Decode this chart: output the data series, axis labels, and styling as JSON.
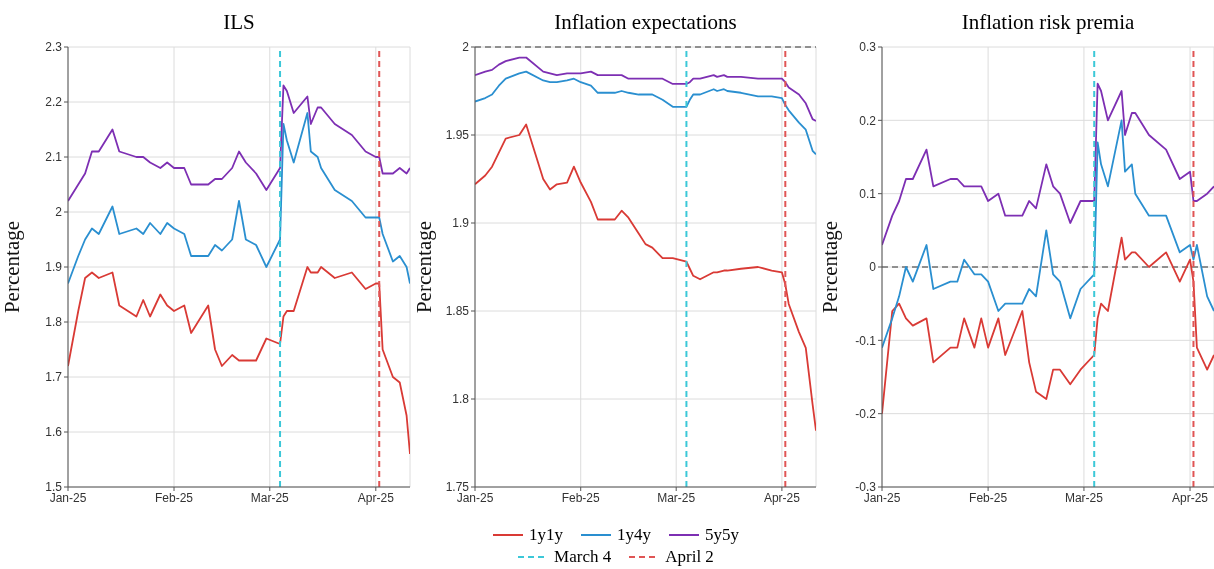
{
  "chart_data": [
    {
      "type": "line",
      "title": "ILS",
      "ylabel": "Percentage",
      "grid": true,
      "x": [
        "2025-01-01",
        "2025-01-04",
        "2025-01-06",
        "2025-01-08",
        "2025-01-10",
        "2025-01-14",
        "2025-01-16",
        "2025-01-21",
        "2025-01-23",
        "2025-01-25",
        "2025-01-28",
        "2025-01-30",
        "2025-02-01",
        "2025-02-04",
        "2025-02-06",
        "2025-02-11",
        "2025-02-13",
        "2025-02-15",
        "2025-02-18",
        "2025-02-20",
        "2025-02-22",
        "2025-02-25",
        "2025-02-28",
        "2025-03-04",
        "2025-03-05",
        "2025-03-06",
        "2025-03-08",
        "2025-03-12",
        "2025-03-13",
        "2025-03-15",
        "2025-03-16",
        "2025-03-20",
        "2025-03-25",
        "2025-03-29",
        "2025-04-01",
        "2025-04-02",
        "2025-04-03",
        "2025-04-06",
        "2025-04-08",
        "2025-04-10",
        "2025-04-11"
      ],
      "xlim": [
        "2025-01-01",
        "2025-04-11"
      ],
      "xticks": [
        {
          "value": "2025-01-01",
          "label": "Jan-25"
        },
        {
          "value": "2025-02-01",
          "label": "Feb-25"
        },
        {
          "value": "2025-03-01",
          "label": "Mar-25"
        },
        {
          "value": "2025-04-01",
          "label": "Apr-25"
        }
      ],
      "ylim": [
        1.5,
        2.3
      ],
      "yticks": [
        1.5,
        1.6,
        1.7,
        1.8,
        1.9,
        2,
        2.1,
        2.2,
        2.3
      ],
      "series": [
        {
          "color": "#d93a35",
          "values": [
            1.72,
            1.82,
            1.88,
            1.89,
            1.88,
            1.89,
            1.83,
            1.81,
            1.84,
            1.81,
            1.85,
            1.83,
            1.82,
            1.83,
            1.78,
            1.83,
            1.75,
            1.72,
            1.74,
            1.73,
            1.73,
            1.73,
            1.77,
            1.76,
            1.81,
            1.82,
            1.82,
            1.9,
            1.89,
            1.89,
            1.9,
            1.88,
            1.89,
            1.86,
            1.87,
            1.87,
            1.75,
            1.7,
            1.69,
            1.63,
            1.56
          ]
        },
        {
          "color": "#2a8fd0",
          "values": [
            1.87,
            1.92,
            1.95,
            1.97,
            1.96,
            2.01,
            1.96,
            1.97,
            1.96,
            1.98,
            1.96,
            1.98,
            1.97,
            1.96,
            1.92,
            1.92,
            1.94,
            1.93,
            1.95,
            2.02,
            1.95,
            1.94,
            1.9,
            1.95,
            2.16,
            2.13,
            2.09,
            2.18,
            2.11,
            2.1,
            2.08,
            2.04,
            2.02,
            1.99,
            1.99,
            1.99,
            1.96,
            1.91,
            1.92,
            1.9,
            1.87
          ]
        },
        {
          "color": "#7d2fb3",
          "values": [
            2.02,
            2.05,
            2.07,
            2.11,
            2.11,
            2.15,
            2.11,
            2.1,
            2.1,
            2.09,
            2.08,
            2.09,
            2.08,
            2.08,
            2.05,
            2.05,
            2.06,
            2.06,
            2.08,
            2.11,
            2.09,
            2.07,
            2.04,
            2.08,
            2.23,
            2.22,
            2.18,
            2.21,
            2.16,
            2.19,
            2.19,
            2.16,
            2.14,
            2.11,
            2.1,
            2.1,
            2.07,
            2.07,
            2.08,
            2.07,
            2.08
          ]
        }
      ],
      "ref_lines": [
        {
          "axis": "x",
          "value": "2025-03-04",
          "color": "#3cc8d8",
          "line_style": "dashed"
        },
        {
          "axis": "x",
          "value": "2025-04-02",
          "color": "#e05555",
          "line_style": "dashed"
        }
      ]
    },
    {
      "type": "line",
      "title": "Inflation expectations",
      "ylabel": "Percentage",
      "grid": true,
      "legend": "bottom",
      "x": [
        "2025-01-01",
        "2025-01-04",
        "2025-01-06",
        "2025-01-08",
        "2025-01-10",
        "2025-01-14",
        "2025-01-16",
        "2025-01-21",
        "2025-01-23",
        "2025-01-25",
        "2025-01-28",
        "2025-01-30",
        "2025-02-01",
        "2025-02-04",
        "2025-02-06",
        "2025-02-11",
        "2025-02-13",
        "2025-02-15",
        "2025-02-18",
        "2025-02-20",
        "2025-02-22",
        "2025-02-25",
        "2025-02-28",
        "2025-03-04",
        "2025-03-05",
        "2025-03-06",
        "2025-03-08",
        "2025-03-12",
        "2025-03-13",
        "2025-03-15",
        "2025-03-16",
        "2025-03-20",
        "2025-03-25",
        "2025-03-29",
        "2025-04-01",
        "2025-04-02",
        "2025-04-03",
        "2025-04-06",
        "2025-04-08",
        "2025-04-10",
        "2025-04-11"
      ],
      "xlim": [
        "2025-01-01",
        "2025-04-11"
      ],
      "xticks": [
        {
          "value": "2025-01-01",
          "label": "Jan-25"
        },
        {
          "value": "2025-02-01",
          "label": "Feb-25"
        },
        {
          "value": "2025-03-01",
          "label": "Mar-25"
        },
        {
          "value": "2025-04-01",
          "label": "Apr-25"
        }
      ],
      "ylim": [
        1.75,
        2
      ],
      "yticks": [
        1.75,
        1.8,
        1.85,
        1.9,
        1.95,
        2
      ],
      "series": [
        {
          "name": "1y1y",
          "color": "#d93a35",
          "values": [
            1.922,
            1.927,
            1.932,
            1.94,
            1.948,
            1.95,
            1.956,
            1.925,
            1.919,
            1.922,
            1.923,
            1.932,
            1.923,
            1.912,
            1.902,
            1.902,
            1.907,
            1.903,
            1.894,
            1.888,
            1.886,
            1.88,
            1.88,
            1.878,
            1.874,
            1.87,
            1.868,
            1.872,
            1.872,
            1.873,
            1.873,
            1.874,
            1.875,
            1.873,
            1.872,
            1.865,
            1.854,
            1.838,
            1.829,
            1.797,
            1.782
          ]
        },
        {
          "name": "1y4y",
          "color": "#2a8fd0",
          "values": [
            1.969,
            1.971,
            1.973,
            1.978,
            1.982,
            1.985,
            1.986,
            1.981,
            1.98,
            1.98,
            1.981,
            1.982,
            1.98,
            1.978,
            1.974,
            1.974,
            1.975,
            1.974,
            1.973,
            1.973,
            1.973,
            1.97,
            1.966,
            1.966,
            1.97,
            1.973,
            1.973,
            1.976,
            1.975,
            1.976,
            1.975,
            1.974,
            1.972,
            1.972,
            1.971,
            1.967,
            1.964,
            1.957,
            1.953,
            1.941,
            1.939
          ]
        },
        {
          "name": "5y5y",
          "color": "#7d2fb3",
          "values": [
            1.984,
            1.986,
            1.987,
            1.99,
            1.992,
            1.994,
            1.994,
            1.986,
            1.985,
            1.984,
            1.985,
            1.985,
            1.985,
            1.986,
            1.984,
            1.984,
            1.984,
            1.982,
            1.982,
            1.982,
            1.982,
            1.982,
            1.979,
            1.979,
            1.98,
            1.982,
            1.982,
            1.984,
            1.983,
            1.984,
            1.983,
            1.983,
            1.982,
            1.982,
            1.982,
            1.98,
            1.977,
            1.973,
            1.968,
            1.959,
            1.958
          ]
        }
      ],
      "ref_lines": [
        {
          "axis": "y",
          "value": 2,
          "color": "#333333",
          "line_style": "dashed"
        },
        {
          "axis": "x",
          "value": "2025-03-04",
          "label": "March 4",
          "color": "#3cc8d8",
          "line_style": "dashed"
        },
        {
          "axis": "x",
          "value": "2025-04-02",
          "label": "April 2",
          "color": "#e05555",
          "line_style": "dashed"
        }
      ]
    },
    {
      "type": "line",
      "title": "Inflation risk premia",
      "ylabel": "Percentage",
      "grid": true,
      "x": [
        "2025-01-01",
        "2025-01-04",
        "2025-01-06",
        "2025-01-08",
        "2025-01-10",
        "2025-01-14",
        "2025-01-16",
        "2025-01-21",
        "2025-01-23",
        "2025-01-25",
        "2025-01-28",
        "2025-01-30",
        "2025-02-01",
        "2025-02-04",
        "2025-02-06",
        "2025-02-11",
        "2025-02-13",
        "2025-02-15",
        "2025-02-18",
        "2025-02-20",
        "2025-02-22",
        "2025-02-25",
        "2025-02-28",
        "2025-03-04",
        "2025-03-05",
        "2025-03-06",
        "2025-03-08",
        "2025-03-12",
        "2025-03-13",
        "2025-03-15",
        "2025-03-16",
        "2025-03-20",
        "2025-03-25",
        "2025-03-29",
        "2025-04-01",
        "2025-04-02",
        "2025-04-03",
        "2025-04-06",
        "2025-04-08"
      ],
      "xlim": [
        "2025-01-01",
        "2025-04-08"
      ],
      "xticks": [
        {
          "value": "2025-01-01",
          "label": "Jan-25"
        },
        {
          "value": "2025-02-01",
          "label": "Feb-25"
        },
        {
          "value": "2025-03-01",
          "label": "Mar-25"
        },
        {
          "value": "2025-04-01",
          "label": "Apr-25"
        }
      ],
      "ylim": [
        -0.3,
        0.3
      ],
      "yticks": [
        -0.3,
        -0.2,
        -0.1,
        0,
        0.1,
        0.2,
        0.3
      ],
      "series": [
        {
          "color": "#d93a35",
          "values": [
            -0.2,
            -0.06,
            -0.05,
            -0.07,
            -0.08,
            -0.07,
            -0.13,
            -0.11,
            -0.11,
            -0.07,
            -0.11,
            -0.07,
            -0.11,
            -0.07,
            -0.12,
            -0.06,
            -0.13,
            -0.17,
            -0.18,
            -0.14,
            -0.14,
            -0.16,
            -0.14,
            -0.12,
            -0.07,
            -0.05,
            -0.06,
            0.04,
            0.01,
            0.02,
            0.02,
            0.0,
            0.02,
            -0.02,
            0.01,
            -0.02,
            -0.11,
            -0.14,
            -0.12
          ]
        },
        {
          "color": "#2a8fd0",
          "values": [
            -0.11,
            -0.07,
            -0.04,
            0.0,
            -0.02,
            0.03,
            -0.03,
            -0.02,
            -0.02,
            0.01,
            -0.01,
            -0.01,
            -0.02,
            -0.06,
            -0.05,
            -0.05,
            -0.03,
            -0.04,
            0.05,
            -0.01,
            -0.02,
            -0.07,
            -0.03,
            -0.01,
            0.17,
            0.14,
            0.11,
            0.2,
            0.13,
            0.14,
            0.1,
            0.07,
            0.07,
            0.02,
            0.03,
            0.01,
            0.03,
            -0.04,
            -0.06
          ]
        },
        {
          "color": "#7d2fb3",
          "values": [
            0.03,
            0.07,
            0.09,
            0.12,
            0.12,
            0.16,
            0.11,
            0.12,
            0.12,
            0.11,
            0.11,
            0.11,
            0.09,
            0.1,
            0.07,
            0.07,
            0.09,
            0.08,
            0.14,
            0.11,
            0.1,
            0.06,
            0.09,
            0.09,
            0.25,
            0.24,
            0.2,
            0.24,
            0.18,
            0.21,
            0.21,
            0.18,
            0.16,
            0.12,
            0.13,
            0.09,
            0.09,
            0.1,
            0.11
          ]
        }
      ],
      "ref_lines": [
        {
          "axis": "y",
          "value": 0,
          "color": "#333333",
          "line_style": "dashed"
        },
        {
          "axis": "x",
          "value": "2025-03-04",
          "color": "#3cc8d8",
          "line_style": "dashed"
        },
        {
          "axis": "x",
          "value": "2025-04-02",
          "color": "#e05555",
          "line_style": "dashed"
        }
      ]
    }
  ]
}
